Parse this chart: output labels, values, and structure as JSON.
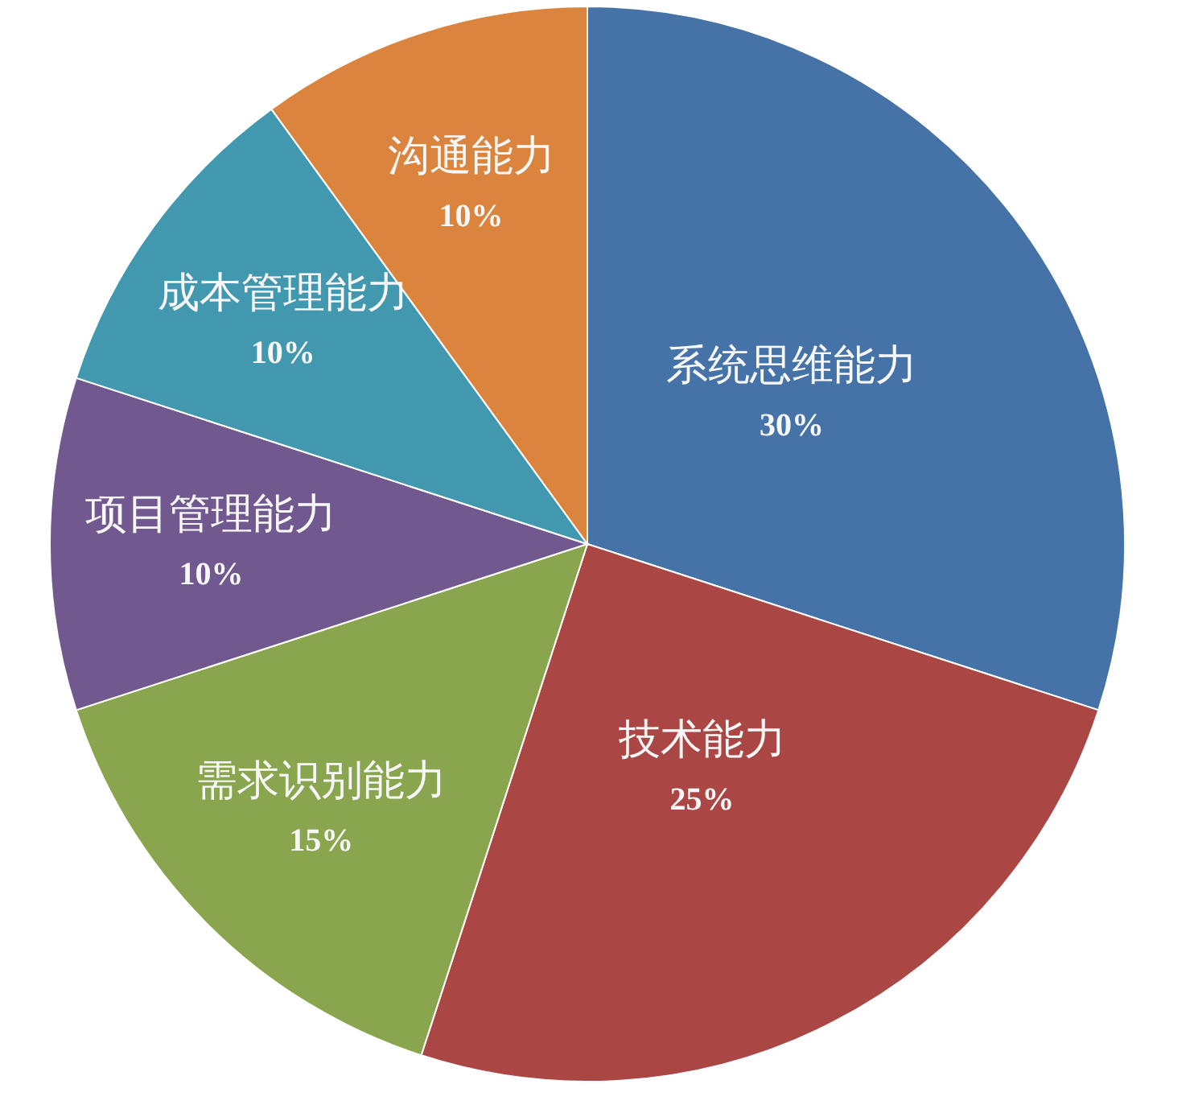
{
  "chart_data": {
    "type": "pie",
    "categories": [
      "系统思维能力",
      "技术能力",
      "需求识别能力",
      "项目管理能力",
      "成本管理能力",
      "沟通能力"
    ],
    "values": [
      30,
      25,
      15,
      10,
      10,
      10
    ],
    "value_labels": [
      "30%",
      "25%",
      "15%",
      "10%",
      "10%",
      "10%"
    ],
    "colors": [
      "#4572a7",
      "#aa4643",
      "#89a54e",
      "#71588f",
      "#4198af",
      "#db843d"
    ]
  }
}
